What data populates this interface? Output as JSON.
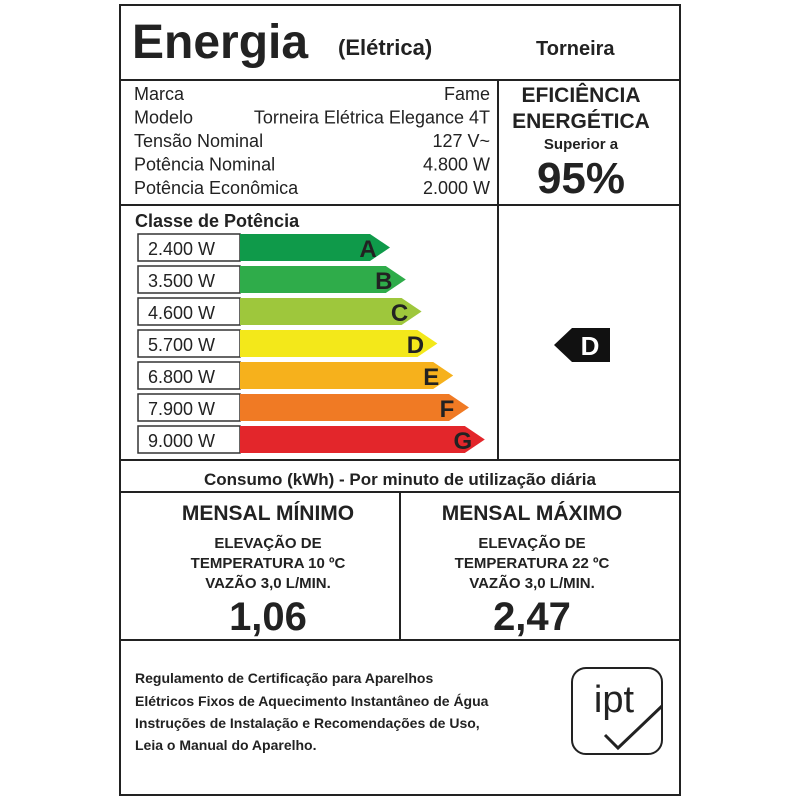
{
  "header": {
    "title": "Energia",
    "subtitle": "(Elétrica)",
    "product": "Torneira"
  },
  "specs": [
    [
      "Marca",
      "Fame"
    ],
    [
      "Modelo",
      "Torneira Elétrica Elegance 4T"
    ],
    [
      "Tensão Nominal",
      "127 V~"
    ],
    [
      "Potência Nominal",
      "4.800 W"
    ],
    [
      "Potência Econômica",
      "2.000 W"
    ]
  ],
  "efficiency": {
    "line1": "EFICIÊNCIA",
    "line2": "ENERGÉTICA",
    "line3": "Superior a",
    "value": "95%"
  },
  "classes": {
    "title": "Classe de Potência",
    "rows": [
      {
        "power": "2.400 W",
        "letter": "A",
        "color": "#0f9a4a"
      },
      {
        "power": "3.500 W",
        "letter": "B",
        "color": "#2fac4a"
      },
      {
        "power": "4.600 W",
        "letter": "C",
        "color": "#9ec73c"
      },
      {
        "power": "5.700 W",
        "letter": "D",
        "color": "#f3e81a"
      },
      {
        "power": "6.800 W",
        "letter": "E",
        "color": "#f6b11c"
      },
      {
        "power": "7.900 W",
        "letter": "F",
        "color": "#f07a24"
      },
      {
        "power": "9.000 W",
        "letter": "G",
        "color": "#e3262b"
      }
    ],
    "indicator": "D"
  },
  "consumption": {
    "title": "Consumo (kWh) - Por minuto de utilização diária",
    "min": {
      "title": "MENSAL MÍNIMO",
      "lines": [
        "ELEVAÇÃO DE",
        "TEMPERATURA 10 ºC",
        "VAZÃO 3,0 L/MIN."
      ],
      "value": "1,06"
    },
    "max": {
      "title": "MENSAL MÁXIMO",
      "lines": [
        "ELEVAÇÃO DE",
        "TEMPERATURA 22 ºC",
        "VAZÃO 3,0 L/MIN."
      ],
      "value": "2,47"
    }
  },
  "footer": {
    "lines": [
      "Regulamento de Certificação para Aparelhos",
      "Elétricos Fixos de Aquecimento Instantâneo de Água",
      "Instruções de Instalação e Recomendações de Uso,",
      "Leia o Manual do Aparelho."
    ],
    "logo": "ipt"
  }
}
